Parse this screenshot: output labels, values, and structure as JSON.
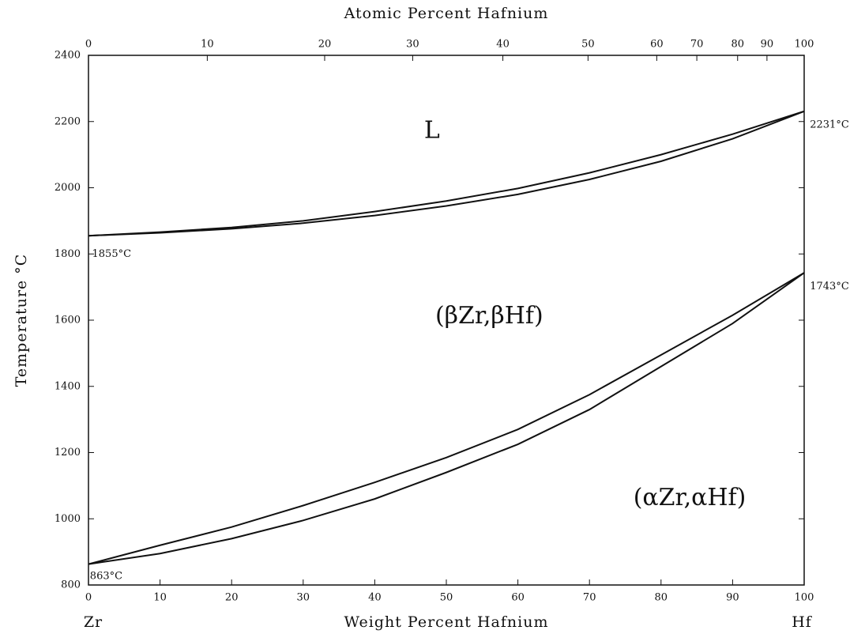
{
  "chart_data": {
    "type": "line",
    "title_top": "Atomic Percent Hafnium",
    "xlabel": "Weight Percent Hafnium",
    "ylabel": "Temperature °C",
    "left_element": "Zr",
    "right_element": "Hf",
    "xlim": [
      0,
      100
    ],
    "ylim": [
      800,
      2400
    ],
    "xticks": [
      0,
      10,
      20,
      30,
      40,
      50,
      60,
      70,
      80,
      90,
      100
    ],
    "yticks": [
      800,
      1000,
      1200,
      1400,
      1600,
      1800,
      2000,
      2200,
      2400
    ],
    "x2ticks": [
      {
        "value": 0,
        "label": "0"
      },
      {
        "value": 16.6,
        "label": "10"
      },
      {
        "value": 33.0,
        "label": "20"
      },
      {
        "value": 45.3,
        "label": "30"
      },
      {
        "value": 57.9,
        "label": "40"
      },
      {
        "value": 69.8,
        "label": "50"
      },
      {
        "value": 79.4,
        "label": "60"
      },
      {
        "value": 85.0,
        "label": "70"
      },
      {
        "value": 90.7,
        "label": "80"
      },
      {
        "value": 94.8,
        "label": "90"
      },
      {
        "value": 100,
        "label": "100"
      }
    ],
    "x": [
      0,
      10,
      20,
      30,
      40,
      50,
      60,
      70,
      80,
      90,
      100
    ],
    "series": [
      {
        "color": "#111111",
        "values": [
          1855,
          1866,
          1880,
          1900,
          1928,
          1960,
          1998,
          2045,
          2100,
          2162,
          2231
        ]
      },
      {
        "color": "#111111",
        "values": [
          1855,
          1864,
          1876,
          1893,
          1916,
          1945,
          1980,
          2025,
          2080,
          2148,
          2231
        ]
      },
      {
        "color": "#111111",
        "values": [
          863,
          920,
          975,
          1040,
          1110,
          1185,
          1270,
          1375,
          1495,
          1615,
          1743
        ]
      },
      {
        "color": "#111111",
        "values": [
          863,
          895,
          940,
          995,
          1060,
          1140,
          1225,
          1330,
          1460,
          1590,
          1743
        ]
      }
    ],
    "annotations": [
      {
        "text": "L",
        "x": 48,
        "y": 2170,
        "kind": "region"
      },
      {
        "text": "(βZr,βHf)",
        "x": 56,
        "y": 1610,
        "kind": "region"
      },
      {
        "text": "(αZr,αHf)",
        "x": 84,
        "y": 1060,
        "kind": "region"
      },
      {
        "text": "1855°C",
        "x": 0.5,
        "y": 1800,
        "kind": "note"
      },
      {
        "text": "2231°C",
        "x": 100.8,
        "y": 2190,
        "kind": "note"
      },
      {
        "text": "1743°C",
        "x": 100.8,
        "y": 1702,
        "kind": "note"
      },
      {
        "text": "863°C",
        "x": 0.2,
        "y": 826,
        "kind": "note"
      }
    ]
  }
}
